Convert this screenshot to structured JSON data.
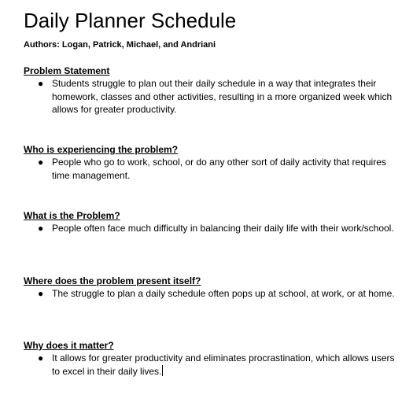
{
  "document": {
    "title": "Daily Planner Schedule",
    "authors": "Authors: Logan, Patrick, Michael, and Andriani",
    "sections": [
      {
        "heading": "Problem Statement",
        "bullet": "Students struggle to plan out their daily schedule in a way that integrates their homework, classes and other activities, resulting in a more organized week which allows for greater productivity."
      },
      {
        "heading": "Who is experiencing the problem?",
        "bullet": "People who go to work, school, or do any other sort of daily activity that requires time management."
      },
      {
        "heading": "What is the Problem?",
        "bullet": "People often face much difficulty in balancing their daily life with their work/school."
      },
      {
        "heading": "Where does the problem present itself?",
        "bullet": "The struggle to plan a daily schedule often pops up at school, at work, or at home."
      },
      {
        "heading": "Why does it matter?",
        "bullet": "It allows for greater productivity and eliminates procrastination, which allows users to excel in their daily lives."
      }
    ]
  }
}
